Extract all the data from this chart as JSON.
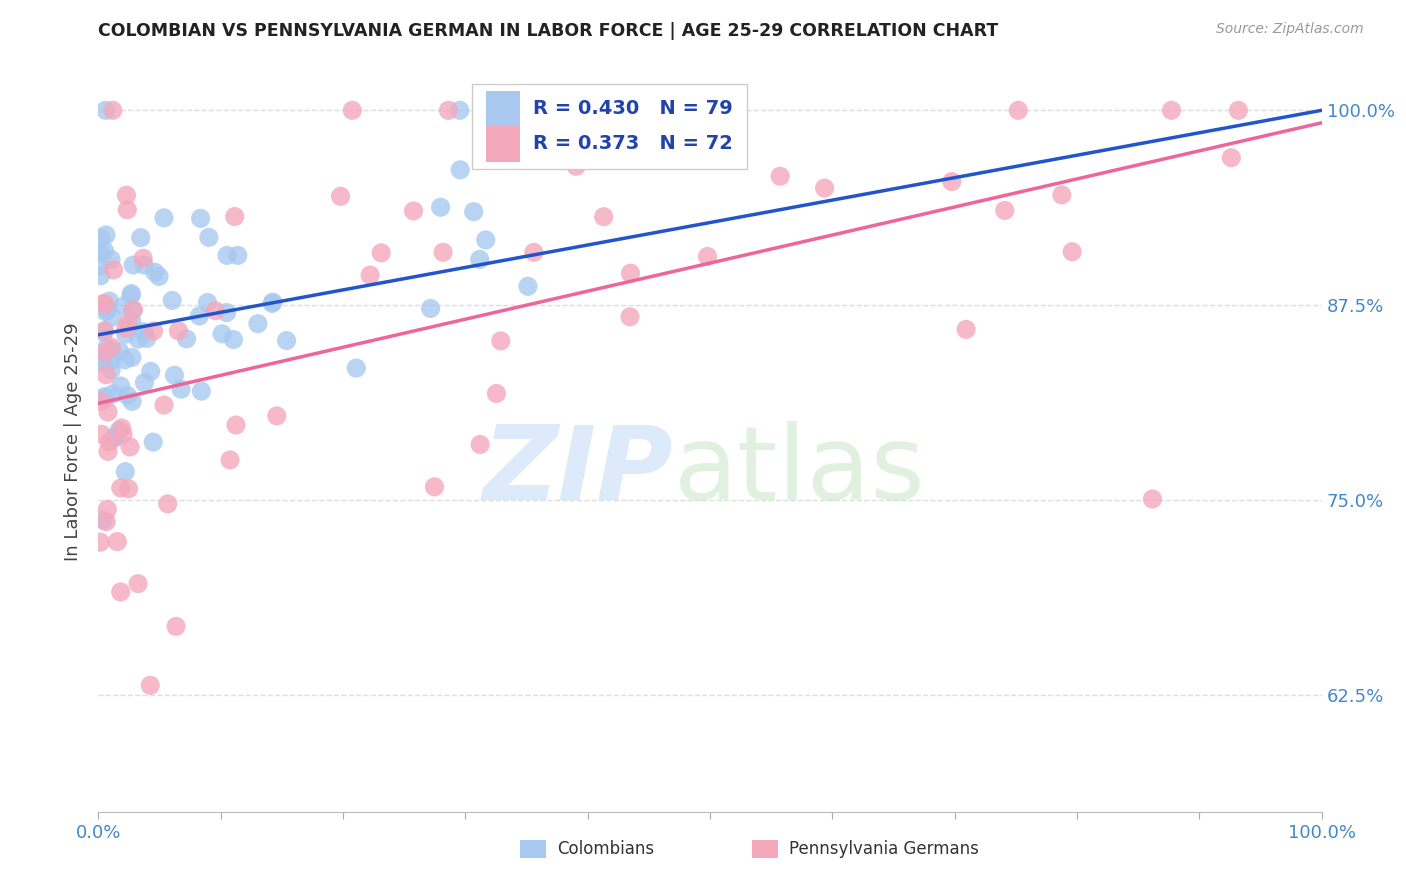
{
  "title": "COLOMBIAN VS PENNSYLVANIA GERMAN IN LABOR FORCE | AGE 25-29 CORRELATION CHART",
  "source": "Source: ZipAtlas.com",
  "ylabel": "In Labor Force | Age 25-29",
  "yticks": [
    0.625,
    0.75,
    0.875,
    1.0
  ],
  "ytick_labels": [
    "62.5%",
    "75.0%",
    "87.5%",
    "100.0%"
  ],
  "legend_label1": "Colombians",
  "legend_label2": "Pennsylvania Germans",
  "R1": 0.43,
  "N1": 79,
  "R2": 0.373,
  "N2": 72,
  "color_blue": "#A8C8F0",
  "color_pink": "#F4A8BC",
  "line_color_blue": "#2255CC",
  "line_color_pink": "#EE6699",
  "grid_color": "#DDDDDD",
  "title_color": "#222222",
  "source_color": "#999999",
  "tick_color": "#4488CC",
  "ymin": 0.55,
  "ymax": 1.025,
  "xmin": 0.0,
  "xmax": 1.0,
  "blue_line_y0": 0.856,
  "blue_line_y1": 1.0,
  "pink_line_y0": 0.812,
  "pink_line_y1": 0.992
}
